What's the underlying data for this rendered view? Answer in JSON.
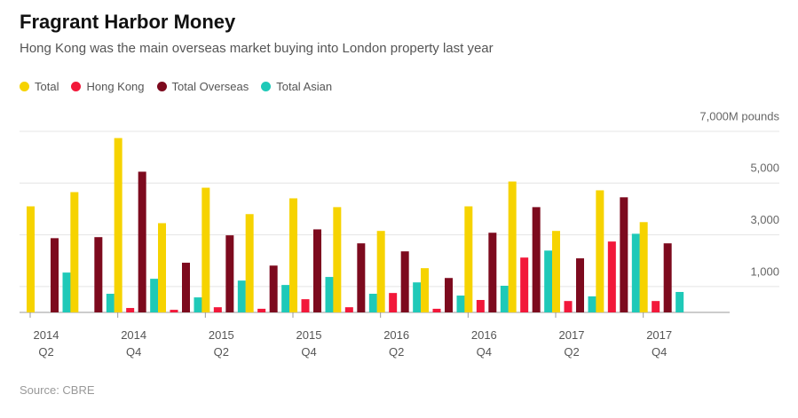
{
  "chart_data": {
    "type": "bar",
    "title": "Fragrant Harbor Money",
    "subtitle": "Hong Kong was the main overseas market buying into London property last year",
    "source": "Source: CBRE",
    "categories": [
      "2014 Q2",
      null,
      "2014 Q4",
      null,
      "2015 Q2",
      null,
      "2015 Q4",
      null,
      "2016 Q2",
      null,
      "2016 Q4",
      null,
      "2017 Q2",
      null,
      "2017 Q4"
    ],
    "series": [
      {
        "name": "Total",
        "color": "#f6d300",
        "values": [
          4100,
          4650,
          6740,
          3450,
          4820,
          3800,
          4410,
          4070,
          3150,
          1710,
          4100,
          5060,
          3150,
          4720,
          3490
        ]
      },
      {
        "name": "Hong Kong",
        "color": "#f2183a",
        "values": [
          0,
          0,
          170,
          100,
          200,
          140,
          510,
          200,
          750,
          140,
          480,
          2120,
          440,
          2740,
          440
        ]
      },
      {
        "name": "Total Overseas",
        "color": "#7d0a1e",
        "values": [
          2870,
          2910,
          5440,
          1920,
          2980,
          1810,
          3210,
          2670,
          2360,
          1330,
          3080,
          4070,
          2090,
          4450,
          2670
        ]
      },
      {
        "name": "Total Asian",
        "color": "#1fc9b8",
        "values": [
          1540,
          720,
          1300,
          580,
          1230,
          1060,
          1370,
          720,
          1160,
          650,
          1030,
          2390,
          620,
          3040,
          790
        ]
      }
    ],
    "ylim": [
      0,
      7000
    ],
    "yticks": [
      {
        "value": 1000,
        "label": "1,000"
      },
      {
        "value": 3000,
        "label": "3,000"
      },
      {
        "value": 5000,
        "label": "5,000"
      },
      {
        "value": 7000,
        "label": "7,000M pounds"
      }
    ],
    "grid": true
  }
}
